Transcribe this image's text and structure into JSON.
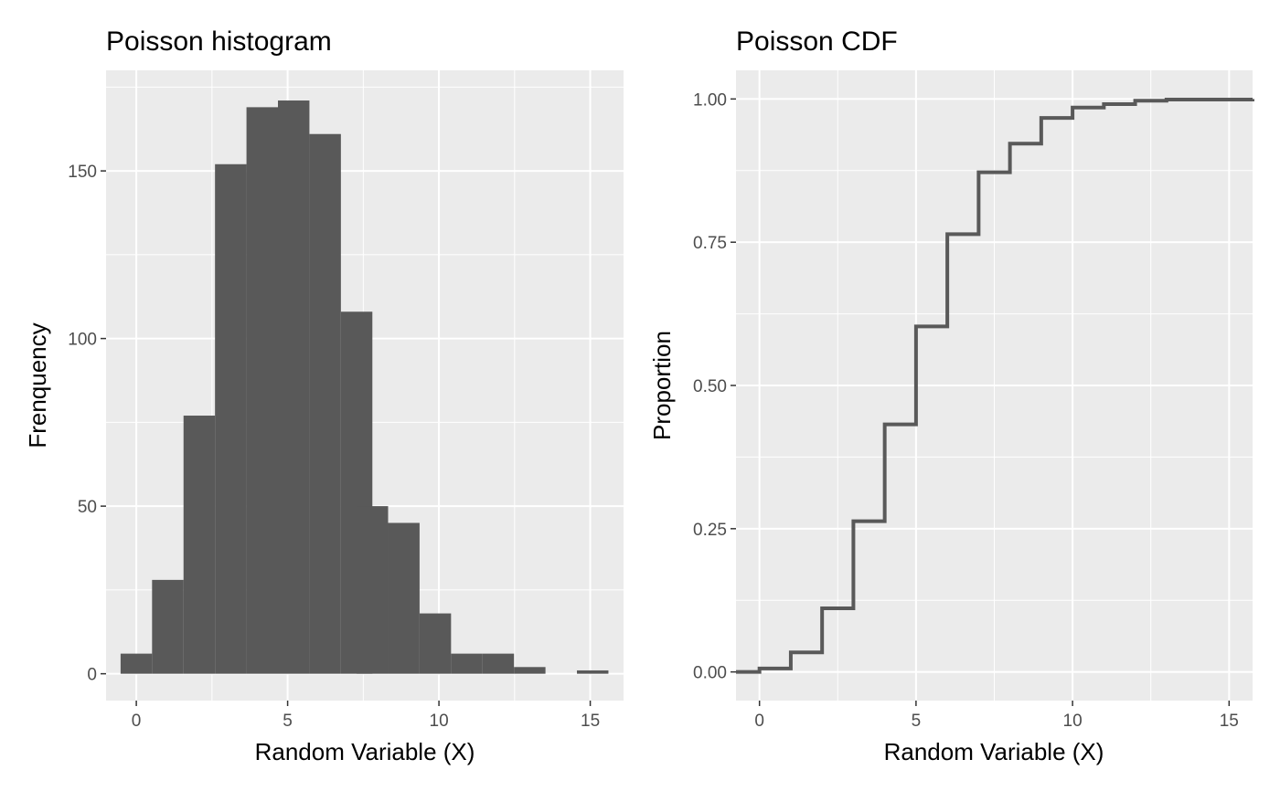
{
  "chart_data": [
    {
      "type": "bar",
      "title": "Poisson histogram",
      "xlabel": "Random Variable (X)",
      "ylabel": "Frenquency",
      "xlim": [
        -1,
        16.1
      ],
      "ylim": [
        -8,
        180
      ],
      "x_ticks": [
        0,
        5,
        10,
        15
      ],
      "x_tick_labels": [
        "0",
        "5",
        "10",
        "15"
      ],
      "y_ticks": [
        0,
        50,
        100,
        150
      ],
      "y_tick_labels": [
        "0",
        "50",
        "100",
        "150"
      ],
      "grid": true,
      "bar_color": "#595959",
      "background": "#ebebeb",
      "bars": [
        {
          "x": 0.0,
          "value": 6
        },
        {
          "x": 1.04,
          "value": 28
        },
        {
          "x": 2.08,
          "value": 77
        },
        {
          "x": 3.12,
          "value": 152
        },
        {
          "x": 4.16,
          "value": 169
        },
        {
          "x": 5.2,
          "value": 171
        },
        {
          "x": 6.24,
          "value": 161
        },
        {
          "x": 7.28,
          "value": 108
        },
        {
          "x": 7.8,
          "value": 50
        },
        {
          "x": 8.84,
          "value": 45
        },
        {
          "x": 9.88,
          "value": 18
        },
        {
          "x": 10.92,
          "value": 6
        },
        {
          "x": 11.96,
          "value": 6
        },
        {
          "x": 13.0,
          "value": 2
        },
        {
          "x": 15.08,
          "value": 1
        }
      ]
    },
    {
      "type": "line",
      "step": true,
      "title": "Poisson CDF",
      "xlabel": "Random Variable (X)",
      "ylabel": "Proportion",
      "xlim": [
        -0.75,
        15.75
      ],
      "ylim": [
        -0.05,
        1.05
      ],
      "x_ticks": [
        0,
        5,
        10,
        15
      ],
      "x_tick_labels": [
        "0",
        "5",
        "10",
        "15"
      ],
      "y_ticks": [
        0,
        0.25,
        0.5,
        0.75,
        1.0
      ],
      "y_tick_labels": [
        "0.00",
        "0.25",
        "0.50",
        "0.75",
        "1.00"
      ],
      "grid": true,
      "line_color": "#595959",
      "background": "#ebebeb",
      "x": [
        -0.75,
        0,
        1,
        2,
        3,
        4,
        5,
        6,
        7,
        8,
        9,
        10,
        11,
        12,
        13,
        15.75
      ],
      "y": [
        0.0,
        0.006,
        0.034,
        0.111,
        0.263,
        0.432,
        0.603,
        0.764,
        0.872,
        0.922,
        0.967,
        0.985,
        0.991,
        0.997,
        0.999,
        1.0
      ]
    }
  ]
}
